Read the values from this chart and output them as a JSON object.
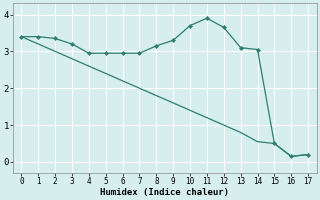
{
  "xlabel": "Humidex (Indice chaleur)",
  "line1_x": [
    0,
    1,
    2,
    3,
    4,
    5,
    6,
    7,
    8,
    9,
    10,
    11,
    12,
    13,
    14,
    15,
    16,
    17
  ],
  "line1_y": [
    3.4,
    3.4,
    3.35,
    3.2,
    2.95,
    2.95,
    2.95,
    2.95,
    3.15,
    3.3,
    3.7,
    3.9,
    3.65,
    3.1,
    3.05,
    0.5,
    0.15,
    0.2
  ],
  "line2_x": [
    0,
    1,
    2,
    3,
    4,
    5,
    6,
    7,
    8,
    9,
    10,
    11,
    12,
    13,
    14,
    15,
    16,
    17
  ],
  "line2_y": [
    3.4,
    3.2,
    3.0,
    2.8,
    2.6,
    2.4,
    2.2,
    2.0,
    1.8,
    1.6,
    1.4,
    1.2,
    1.0,
    0.8,
    0.55,
    0.5,
    0.15,
    0.2
  ],
  "line_color": "#2e7d70",
  "bg_color": "#d6eeee",
  "grid_color": "#ffffff",
  "xlim": [
    -0.5,
    17.5
  ],
  "ylim": [
    -0.3,
    4.3
  ],
  "xticks": [
    0,
    1,
    2,
    3,
    4,
    5,
    6,
    7,
    8,
    9,
    10,
    11,
    12,
    13,
    14,
    15,
    16,
    17
  ],
  "yticks": [
    0,
    1,
    2,
    3,
    4
  ],
  "figsize": [
    3.2,
    2.0
  ],
  "dpi": 100
}
